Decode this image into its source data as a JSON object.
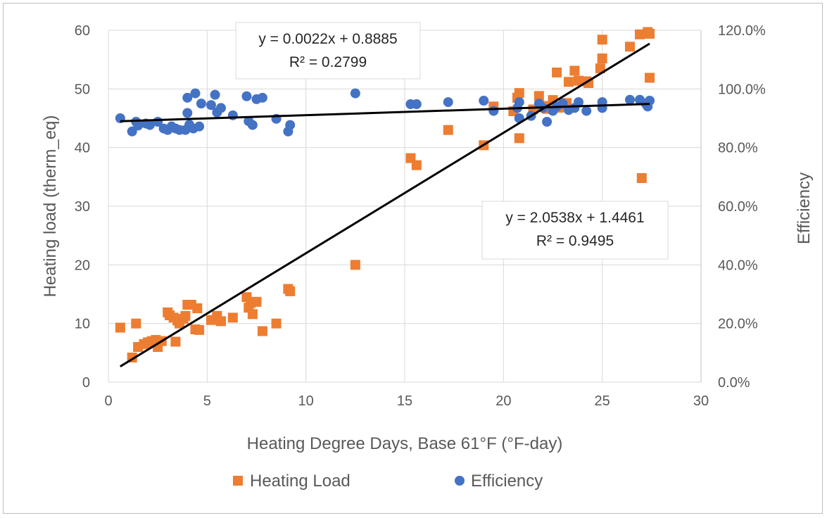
{
  "chart_data": {
    "type": "scatter",
    "title": "",
    "xlabel": "Heating Degree Days, Base 61°F (°F-day)",
    "ylabel": "Heating load (therm_eq)",
    "y2label": "Efficiency",
    "xlim": [
      0,
      30
    ],
    "ylim": [
      0,
      60
    ],
    "y2lim": [
      0,
      1.2
    ],
    "xticks": [
      "0",
      "5",
      "10",
      "15",
      "20",
      "25",
      "30"
    ],
    "yticks": [
      "0",
      "10",
      "20",
      "30",
      "40",
      "50",
      "60"
    ],
    "y2ticks": [
      "0.0%",
      "20.0%",
      "40.0%",
      "60.0%",
      "80.0%",
      "100.0%",
      "120.0%"
    ],
    "grid": true,
    "legend_position": "bottom",
    "series": [
      {
        "name": "Heating Load",
        "axis": "left",
        "marker": "square",
        "color": "#ed7d31",
        "points": [
          [
            0.6,
            9.3
          ],
          [
            1.2,
            4.2
          ],
          [
            1.4,
            10.0
          ],
          [
            1.5,
            6.0
          ],
          [
            1.8,
            6.5
          ],
          [
            2.0,
            6.8
          ],
          [
            2.2,
            7.0
          ],
          [
            2.4,
            7.2
          ],
          [
            2.5,
            6.0
          ],
          [
            2.7,
            7.0
          ],
          [
            3.0,
            11.9
          ],
          [
            3.1,
            11.4
          ],
          [
            3.3,
            11.0
          ],
          [
            3.4,
            6.9
          ],
          [
            3.5,
            10.5
          ],
          [
            3.6,
            10.0
          ],
          [
            3.8,
            10.8
          ],
          [
            3.9,
            11.3
          ],
          [
            4.0,
            13.2
          ],
          [
            4.2,
            13.2
          ],
          [
            4.4,
            9.0
          ],
          [
            4.5,
            12.6
          ],
          [
            4.6,
            8.9
          ],
          [
            5.2,
            10.6
          ],
          [
            5.5,
            11.3
          ],
          [
            5.7,
            10.4
          ],
          [
            6.3,
            11.0
          ],
          [
            7.0,
            14.5
          ],
          [
            7.1,
            12.7
          ],
          [
            7.2,
            13.5
          ],
          [
            7.3,
            11.6
          ],
          [
            7.5,
            13.7
          ],
          [
            7.8,
            8.7
          ],
          [
            8.5,
            10.0
          ],
          [
            9.1,
            15.9
          ],
          [
            9.2,
            15.5
          ],
          [
            12.5,
            20.0
          ],
          [
            15.3,
            38.2
          ],
          [
            15.6,
            37.0
          ],
          [
            17.2,
            43.0
          ],
          [
            19.0,
            40.4
          ],
          [
            19.5,
            47.0
          ],
          [
            20.5,
            46.2
          ],
          [
            20.7,
            48.5
          ],
          [
            20.8,
            41.6
          ],
          [
            20.8,
            49.3
          ],
          [
            21.5,
            46.5
          ],
          [
            21.8,
            48.8
          ],
          [
            22.0,
            47.1
          ],
          [
            22.2,
            46.6
          ],
          [
            22.5,
            48.1
          ],
          [
            22.7,
            52.8
          ],
          [
            22.8,
            46.8
          ],
          [
            23.2,
            47.6
          ],
          [
            23.3,
            51.2
          ],
          [
            23.6,
            53.1
          ],
          [
            23.8,
            51.4
          ],
          [
            24.2,
            51.3
          ],
          [
            24.3,
            51.0
          ],
          [
            24.9,
            53.5
          ],
          [
            25.0,
            55.2
          ],
          [
            25.0,
            58.4
          ],
          [
            26.4,
            57.2
          ],
          [
            26.9,
            59.3
          ],
          [
            27.0,
            34.8
          ],
          [
            27.3,
            59.7
          ],
          [
            27.4,
            59.4
          ],
          [
            27.4,
            51.9
          ]
        ]
      },
      {
        "name": "Efficiency",
        "axis": "right",
        "marker": "circle",
        "color": "#4472c4",
        "points": [
          [
            0.6,
            0.9
          ],
          [
            1.2,
            0.855
          ],
          [
            1.4,
            0.888
          ],
          [
            1.5,
            0.875
          ],
          [
            1.9,
            0.882
          ],
          [
            2.1,
            0.877
          ],
          [
            2.5,
            0.888
          ],
          [
            2.8,
            0.865
          ],
          [
            3.0,
            0.86
          ],
          [
            3.2,
            0.872
          ],
          [
            3.4,
            0.865
          ],
          [
            3.6,
            0.86
          ],
          [
            3.9,
            0.86
          ],
          [
            4.0,
            0.918
          ],
          [
            4.0,
            0.97
          ],
          [
            4.1,
            0.878
          ],
          [
            4.3,
            0.865
          ],
          [
            4.4,
            0.985
          ],
          [
            4.6,
            0.872
          ],
          [
            4.7,
            0.95
          ],
          [
            5.2,
            0.945
          ],
          [
            5.4,
            0.98
          ],
          [
            5.5,
            0.92
          ],
          [
            5.7,
            0.935
          ],
          [
            6.3,
            0.91
          ],
          [
            7.0,
            0.975
          ],
          [
            7.1,
            0.89
          ],
          [
            7.3,
            0.877
          ],
          [
            7.5,
            0.965
          ],
          [
            7.8,
            0.97
          ],
          [
            8.5,
            0.898
          ],
          [
            9.1,
            0.855
          ],
          [
            9.2,
            0.877
          ],
          [
            12.5,
            0.985
          ],
          [
            15.3,
            0.948
          ],
          [
            15.6,
            0.948
          ],
          [
            17.2,
            0.955
          ],
          [
            19.0,
            0.96
          ],
          [
            19.5,
            0.925
          ],
          [
            20.7,
            0.935
          ],
          [
            20.8,
            0.9
          ],
          [
            20.8,
            0.955
          ],
          [
            21.4,
            0.908
          ],
          [
            21.8,
            0.95
          ],
          [
            22.0,
            0.935
          ],
          [
            22.2,
            0.888
          ],
          [
            22.5,
            0.925
          ],
          [
            22.7,
            0.94
          ],
          [
            23.0,
            0.95
          ],
          [
            23.3,
            0.928
          ],
          [
            23.6,
            0.935
          ],
          [
            23.8,
            0.955
          ],
          [
            24.2,
            0.925
          ],
          [
            25.0,
            0.955
          ],
          [
            25.0,
            0.935
          ],
          [
            26.4,
            0.963
          ],
          [
            26.9,
            0.963
          ],
          [
            27.2,
            0.95
          ],
          [
            27.3,
            0.94
          ],
          [
            27.4,
            0.96
          ]
        ]
      }
    ],
    "trendlines": [
      {
        "series": "Heating Load",
        "axis": "left",
        "slope": 2.0538,
        "intercept": 1.4461,
        "x_range": [
          0.6,
          27.4
        ],
        "equation": "y = 2.0538x  + 1.4461",
        "r2": "R² = 0.9495"
      },
      {
        "series": "Efficiency",
        "axis": "right",
        "slope": 0.0022,
        "intercept": 0.8885,
        "x_range": [
          0.6,
          27.4
        ],
        "equation": "y = 0.0022x  + 0.8885",
        "r2": "R² = 0.2799"
      }
    ]
  }
}
